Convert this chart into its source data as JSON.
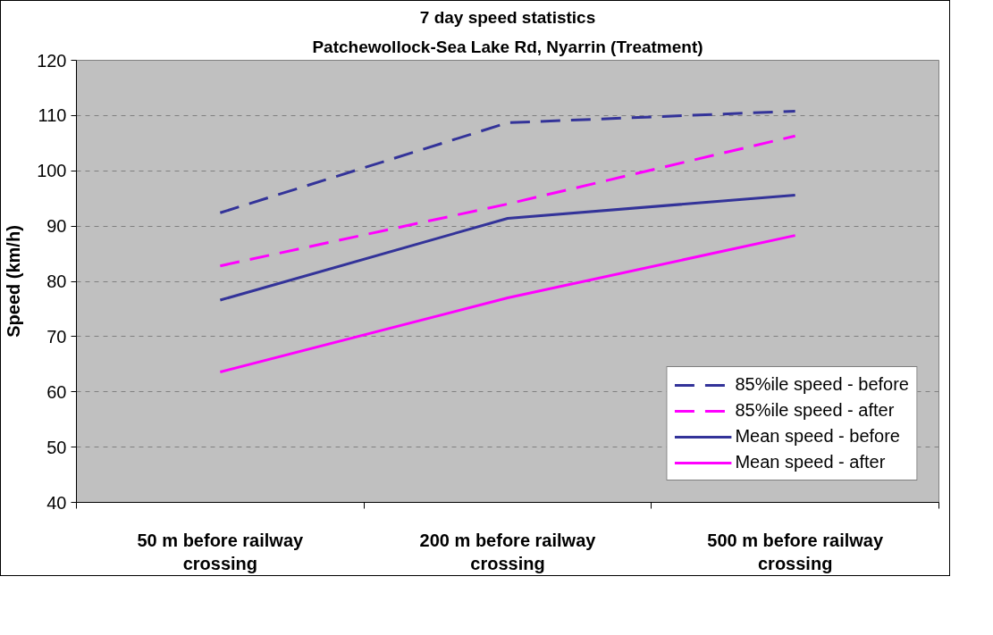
{
  "chart_data": {
    "type": "line",
    "title": "7 day speed statistics",
    "subtitle": "Patchewollock-Sea Lake Rd, Nyarrin (Treatment)",
    "ylabel": "Speed (km/h)",
    "categories": [
      "50 m before railway crossing",
      "200 m before railway crossing",
      "500 m before railway crossing"
    ],
    "ylim": [
      40,
      120
    ],
    "yticks": [
      40,
      50,
      60,
      70,
      80,
      90,
      100,
      110,
      120
    ],
    "grid": "y",
    "legend": "bottom right",
    "series": [
      {
        "name": "85%ile speed - before",
        "color": "#333399",
        "line_style": "dashed",
        "values": [
          92.4,
          108.7,
          110.8
        ]
      },
      {
        "name": "85%ile speed - after",
        "color": "#ff00ff",
        "line_style": "dashed",
        "values": [
          82.8,
          94.0,
          106.3
        ]
      },
      {
        "name": "Mean speed - before",
        "color": "#333399",
        "line_style": "solid",
        "values": [
          76.6,
          91.4,
          95.6
        ]
      },
      {
        "name": "Mean speed - after",
        "color": "#ff00ff",
        "line_style": "solid",
        "values": [
          63.6,
          77.0,
          88.3
        ]
      }
    ]
  }
}
